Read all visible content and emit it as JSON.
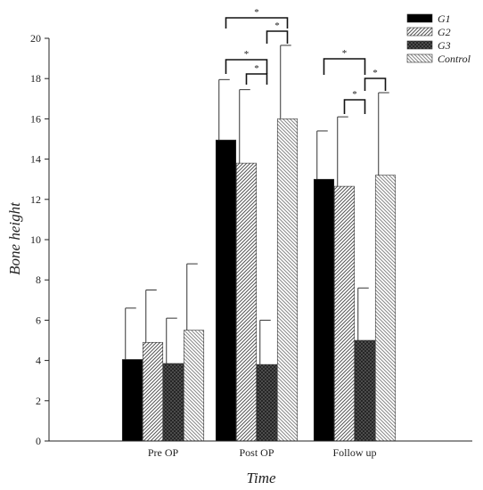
{
  "chart_data": {
    "type": "bar",
    "xlabel": "Time",
    "ylabel": "Bone height",
    "ylim": [
      0,
      20
    ],
    "yticks": [
      "0",
      "2",
      "4",
      "6",
      "8",
      "10",
      "12",
      "14",
      "16",
      "18",
      "20"
    ],
    "categories": [
      "Pre OP",
      "Post OP",
      "Follow up"
    ],
    "series": [
      {
        "name": "G1",
        "values": [
          4.05,
          14.95,
          13.0
        ],
        "errors": [
          2.55,
          3.0,
          2.4
        ],
        "pattern": "solid",
        "color": "#000000"
      },
      {
        "name": "G2",
        "values": [
          4.9,
          13.8,
          12.65
        ],
        "errors": [
          2.6,
          3.65,
          3.45
        ],
        "pattern": "diagonal",
        "color": "#7a7a7a"
      },
      {
        "name": "G3",
        "values": [
          3.85,
          3.8,
          5.0
        ],
        "errors": [
          2.25,
          2.2,
          2.6
        ],
        "pattern": "crosshatch",
        "color": "#3a3a3a"
      },
      {
        "name": "Control",
        "values": [
          5.5,
          16.0,
          13.2
        ],
        "errors": [
          3.3,
          3.65,
          4.1
        ],
        "pattern": "back-diagonal",
        "color": "#9a9a9a"
      }
    ],
    "significance": [
      {
        "category": 1,
        "from": 0,
        "to": 3,
        "label": "*"
      },
      {
        "category": 1,
        "from": 0,
        "to": 2,
        "label": "*"
      },
      {
        "category": 1,
        "from": 2,
        "to": 3,
        "label": "*"
      },
      {
        "category": 1,
        "from": 1,
        "to": 2,
        "label": "*"
      },
      {
        "category": 2,
        "from": 0,
        "to": 2,
        "label": "*"
      },
      {
        "category": 2,
        "from": 1,
        "to": 2,
        "label": "*"
      },
      {
        "category": 2,
        "from": 2,
        "to": 3,
        "label": "*"
      }
    ],
    "legend_position": "top-right",
    "grid": false
  }
}
